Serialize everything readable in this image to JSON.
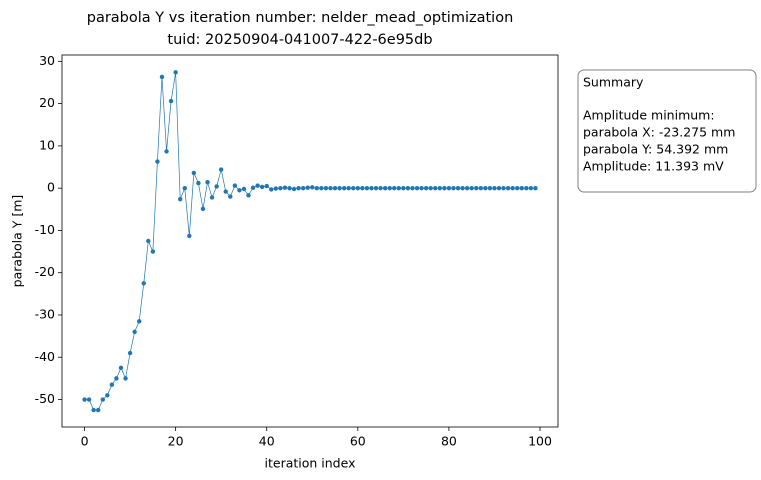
{
  "chart_data": {
    "type": "line",
    "title": "parabola Y vs iteration number: nelder_mead_optimization",
    "subtitle": "tuid: 20250904-041007-422-6e95db",
    "x_label": "iteration index",
    "y_label": "parabola Y [m]",
    "x": [
      0,
      1,
      2,
      3,
      4,
      5,
      6,
      7,
      8,
      9,
      10,
      11,
      12,
      13,
      14,
      15,
      16,
      17,
      18,
      19,
      20,
      21,
      22,
      23,
      24,
      25,
      26,
      27,
      28,
      29,
      30,
      31,
      32,
      33,
      34,
      35,
      36,
      37,
      38,
      39,
      40,
      41,
      42,
      43,
      44,
      45,
      46,
      47,
      48,
      49,
      50,
      51,
      52,
      53,
      54,
      55,
      56,
      57,
      58,
      59,
      60,
      61,
      62,
      63,
      64,
      65,
      66,
      67,
      68,
      69,
      70,
      71,
      72,
      73,
      74,
      75,
      76,
      77,
      78,
      79,
      80,
      81,
      82,
      83,
      84,
      85,
      86,
      87,
      88,
      89,
      90,
      91,
      92,
      93,
      94,
      95,
      96,
      97,
      98,
      99
    ],
    "values": [
      -50,
      -50,
      -52.5,
      -52.5,
      -50,
      -49,
      -46.5,
      -45,
      -42.5,
      -45,
      -39,
      -34,
      -31.5,
      -22.5,
      -12.5,
      -15,
      6.3,
      26.3,
      8.7,
      20.6,
      27.4,
      -2.6,
      0,
      -11.3,
      3.6,
      1.2,
      -4.9,
      1.4,
      -2.2,
      0.4,
      4.4,
      -0.8,
      -2,
      0.6,
      -0.5,
      -0.2,
      -1.7,
      0.1,
      0.6,
      0.3,
      0.5,
      -0.3,
      -0.1,
      0,
      0.1,
      0,
      -0.2,
      0,
      0,
      0.1,
      0.2,
      0,
      0,
      0,
      0,
      0,
      0,
      0,
      0,
      0,
      0,
      0,
      0,
      0,
      0,
      0,
      0,
      0,
      0,
      0,
      0,
      0,
      0,
      0,
      0,
      0,
      0,
      0,
      0,
      0,
      0,
      0,
      0,
      0,
      0,
      0,
      0,
      0,
      0,
      0,
      0,
      0,
      0,
      0,
      0,
      0,
      0,
      0,
      0,
      0
    ],
    "color": "#1f77b4",
    "xlim": [
      -4.95,
      103.95
    ],
    "xticks": [
      0,
      20,
      40,
      60,
      80,
      100
    ],
    "ylim": [
      -56.5,
      31.5
    ],
    "yticks": [
      -50,
      -40,
      -30,
      -20,
      -10,
      0,
      10,
      20,
      30
    ],
    "grid": false
  },
  "summary": {
    "title": "Summary",
    "lines": [
      "Amplitude minimum:",
      "parabola X: -23.275 mm",
      "parabola Y: 54.392 mm",
      "Amplitude: 11.393 mV"
    ]
  }
}
